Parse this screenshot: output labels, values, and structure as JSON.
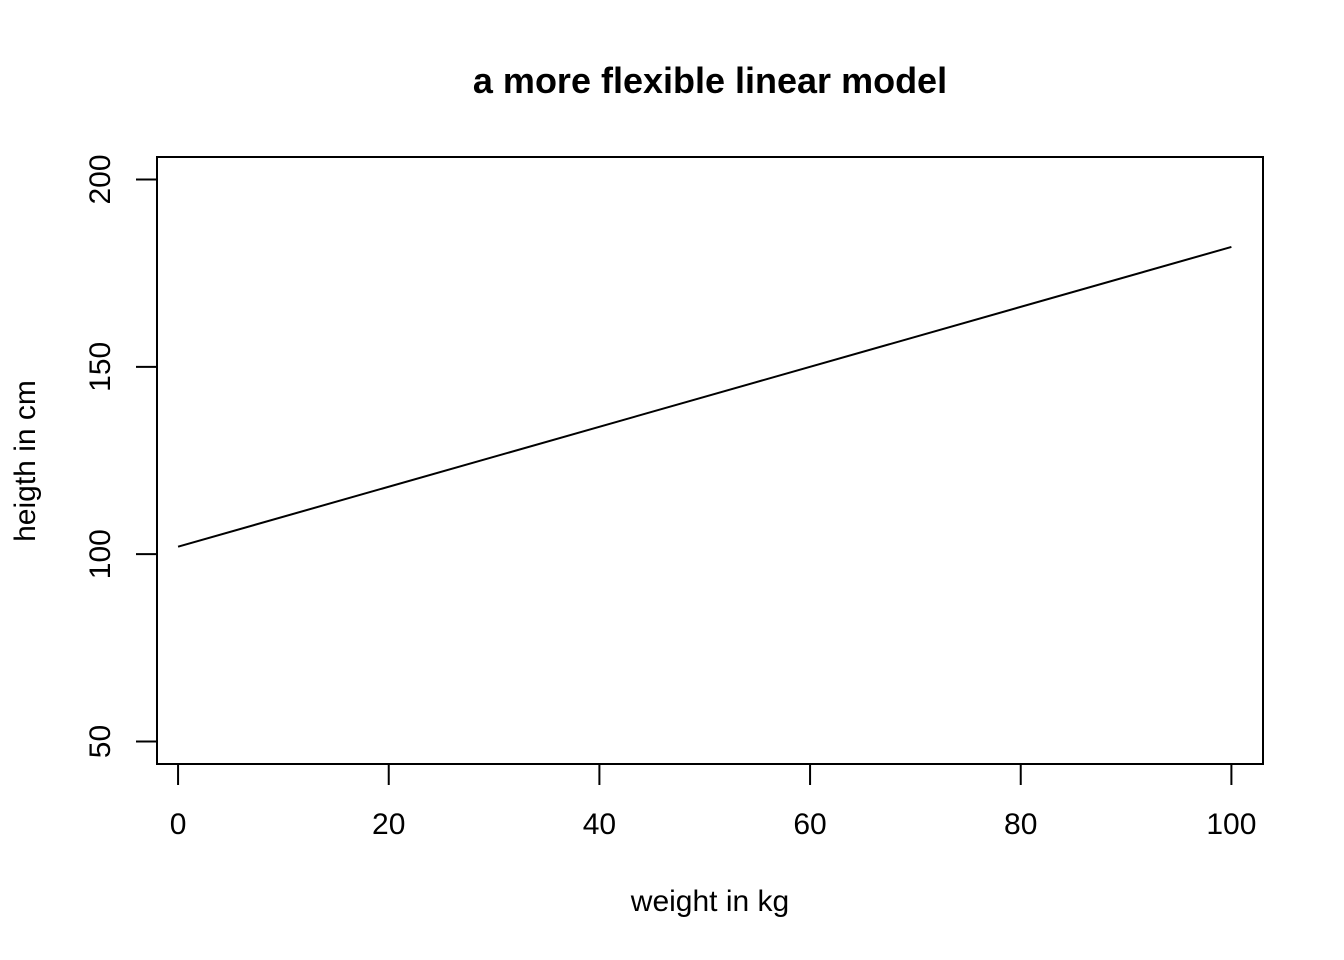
{
  "chart_data": {
    "type": "line",
    "title": "a more flexible linear model",
    "xlabel": "weight in kg",
    "ylabel": "heigth in cm",
    "xlim": [
      -2,
      103
    ],
    "ylim": [
      44,
      206
    ],
    "x_ticks": [
      0,
      20,
      40,
      60,
      80,
      100
    ],
    "y_ticks": [
      50,
      100,
      150,
      200
    ],
    "grid": false,
    "legend": "none",
    "line_color": "#000000",
    "series": [
      {
        "x": [
          0,
          100
        ],
        "y": [
          102,
          182
        ]
      }
    ]
  }
}
